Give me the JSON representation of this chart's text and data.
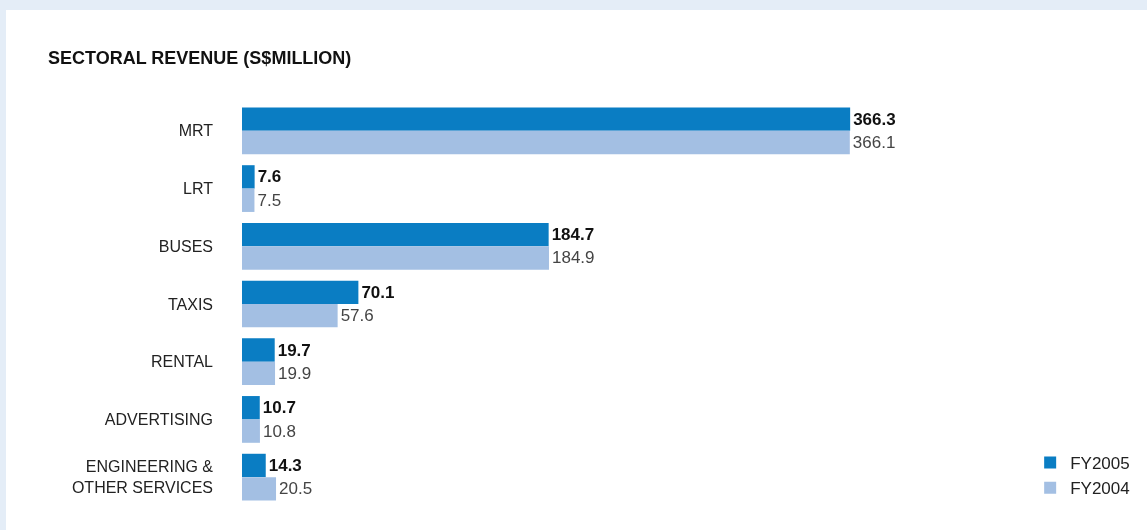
{
  "chart_data": {
    "type": "bar",
    "orientation": "horizontal",
    "title": "SECTORAL REVENUE (S$MILLION)",
    "categories": [
      "MRT",
      "LRT",
      "BUSES",
      "TAXIS",
      "RENTAL",
      "ADVERTISING",
      "ENGINEERING & OTHER SERVICES"
    ],
    "series": [
      {
        "name": "FY2005",
        "color": "#0a7dc3",
        "values": [
          366.3,
          7.6,
          184.7,
          70.1,
          19.7,
          10.7,
          14.3
        ]
      },
      {
        "name": "FY2004",
        "color": "#a3bfe3",
        "values": [
          366.1,
          7.5,
          184.9,
          57.6,
          19.9,
          10.8,
          20.5
        ]
      }
    ],
    "data_labels": true,
    "legend": "bottom right",
    "grid": false,
    "tick_labels": "y"
  }
}
